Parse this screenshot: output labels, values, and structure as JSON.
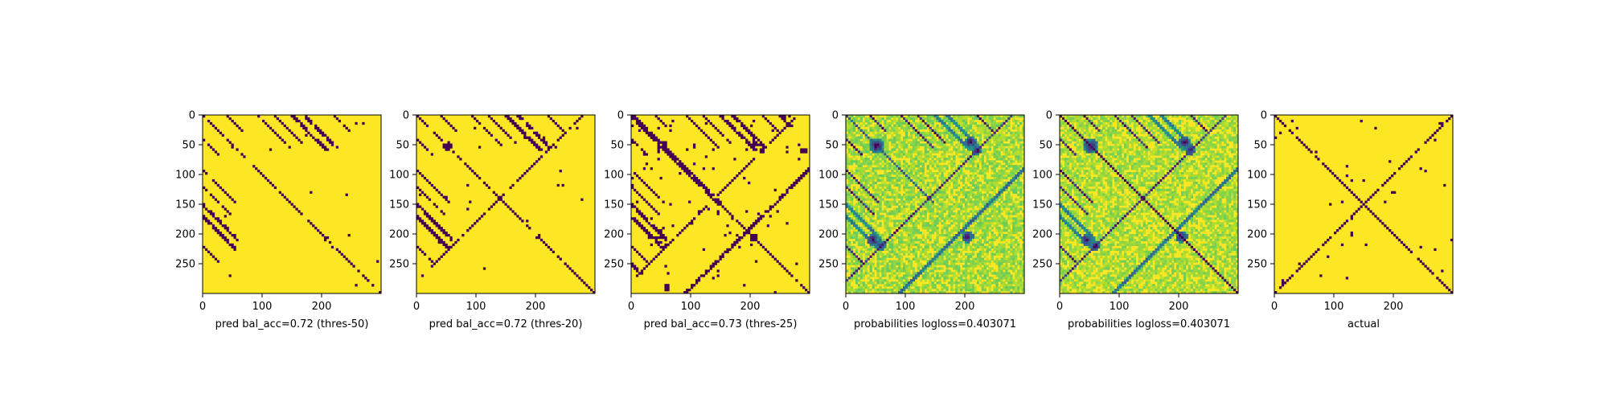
{
  "chart_data": [
    {
      "type": "heatmap",
      "xlabel": "pred bal_acc=0.72 (thres-50)",
      "matrix_size": 300,
      "xlim": [
        0,
        300
      ],
      "ylim": [
        300,
        0
      ],
      "xticks": [
        "0",
        "100",
        "200"
      ],
      "yticks": [
        "0",
        "50",
        "100",
        "150",
        "200",
        "250"
      ],
      "colormap": "viridis",
      "binary": true,
      "main_diagonal": true,
      "band_width": 2.2,
      "noise_density": 0.03,
      "bands": [
        [
          1,
          150
        ],
        [
          92,
          55
        ],
        [
          120,
          48
        ],
        [
          150,
          60
        ],
        [
          40,
          30
        ],
        [
          170,
          55
        ],
        [
          220,
          30
        ]
      ],
      "blobs": [
        [
          52,
          52,
          6
        ],
        [
          208,
          208,
          4
        ],
        [
          210,
          40,
          4
        ]
      ]
    },
    {
      "type": "heatmap",
      "xlabel": "pred bal_acc=0.72 (thres-20)",
      "matrix_size": 300,
      "xlim": [
        0,
        300
      ],
      "ylim": [
        300,
        0
      ],
      "xticks": [
        "0",
        "100",
        "200"
      ],
      "yticks": [
        "0",
        "50",
        "100",
        "150",
        "200",
        "250"
      ],
      "colormap": "viridis",
      "binary": true,
      "main_diagonal": true,
      "band_width": 2.5,
      "noise_density": 0.05,
      "bands": [
        [
          1,
          150
        ],
        [
          92,
          55
        ],
        [
          120,
          48
        ],
        [
          150,
          60
        ],
        [
          40,
          30
        ],
        [
          170,
          55
        ],
        [
          220,
          30
        ],
        [
          -170,
          40
        ]
      ],
      "blobs": [
        [
          52,
          52,
          7
        ],
        [
          205,
          205,
          5
        ],
        [
          212,
          40,
          5
        ]
      ]
    },
    {
      "type": "heatmap",
      "xlabel": "pred bal_acc=0.73 (thres-25)",
      "matrix_size": 300,
      "xlim": [
        0,
        300
      ],
      "ylim": [
        300,
        0
      ],
      "xticks": [
        "0",
        "100",
        "200"
      ],
      "yticks": [
        "0",
        "50",
        "100",
        "150",
        "200",
        "250"
      ],
      "colormap": "viridis",
      "binary": true,
      "main_diagonal": true,
      "band_width": 3.2,
      "noise_density": 0.2,
      "bands": [
        [
          1,
          150
        ],
        [
          92,
          55
        ],
        [
          120,
          48
        ],
        [
          150,
          60
        ],
        [
          40,
          30
        ],
        [
          170,
          55
        ],
        [
          220,
          30
        ],
        [
          -170,
          40
        ],
        [
          -60,
          30
        ],
        [
          250,
          20
        ]
      ],
      "blobs": [
        [
          52,
          52,
          9
        ],
        [
          205,
          205,
          7
        ],
        [
          210,
          45,
          7
        ],
        [
          60,
          220,
          6
        ],
        [
          290,
          60,
          5
        ]
      ]
    },
    {
      "type": "heatmap",
      "xlabel": "probabilities logloss=0.403071",
      "matrix_size": 300,
      "xlim": [
        0,
        300
      ],
      "ylim": [
        300,
        0
      ],
      "xticks": [
        "0",
        "100",
        "200"
      ],
      "yticks": [
        "0",
        "50",
        "100",
        "150",
        "200",
        "250"
      ],
      "colormap": "viridis",
      "binary": false,
      "main_diagonal": false,
      "band_width": 2.5,
      "noise_density": 0.55,
      "bands": [
        [
          1,
          150
        ],
        [
          92,
          55
        ],
        [
          120,
          48
        ],
        [
          150,
          60
        ],
        [
          40,
          30
        ],
        [
          170,
          55
        ],
        [
          220,
          30
        ],
        [
          -170,
          40
        ],
        [
          -60,
          30
        ]
      ],
      "blobs": [
        [
          52,
          52,
          12
        ],
        [
          205,
          205,
          10
        ],
        [
          210,
          45,
          10
        ],
        [
          60,
          220,
          8
        ]
      ]
    },
    {
      "type": "heatmap",
      "xlabel": "probabilities logloss=0.403071",
      "matrix_size": 300,
      "xlim": [
        0,
        300
      ],
      "ylim": [
        300,
        0
      ],
      "xticks": [
        "0",
        "100",
        "200"
      ],
      "yticks": [
        "0",
        "50",
        "100",
        "150",
        "200",
        "250"
      ],
      "colormap": "viridis",
      "binary": false,
      "main_diagonal": true,
      "band_width": 2.5,
      "noise_density": 0.5,
      "bands": [
        [
          1,
          150
        ],
        [
          92,
          55
        ],
        [
          120,
          48
        ],
        [
          150,
          60
        ],
        [
          40,
          30
        ],
        [
          170,
          55
        ],
        [
          220,
          30
        ],
        [
          -170,
          40
        ],
        [
          -60,
          30
        ]
      ],
      "blobs": [
        [
          52,
          52,
          12
        ],
        [
          205,
          205,
          10
        ],
        [
          210,
          45,
          10
        ],
        [
          60,
          220,
          8
        ]
      ]
    },
    {
      "type": "heatmap",
      "xlabel": "actual",
      "matrix_size": 300,
      "xlim": [
        0,
        300
      ],
      "ylim": [
        300,
        0
      ],
      "xticks": [
        "0",
        "100",
        "200"
      ],
      "yticks": [
        "0",
        "50",
        "100",
        "150",
        "200",
        "250"
      ],
      "colormap": "viridis",
      "binary": true,
      "main_diagonal": true,
      "band_width": 1.6,
      "noise_density": 0.08,
      "bands": [
        [
          1,
          150
        ],
        [
          -150,
          150
        ]
      ],
      "blobs": [
        [
          30,
          10,
          4
        ],
        [
          15,
          280,
          3
        ],
        [
          200,
          130,
          4
        ]
      ]
    }
  ]
}
